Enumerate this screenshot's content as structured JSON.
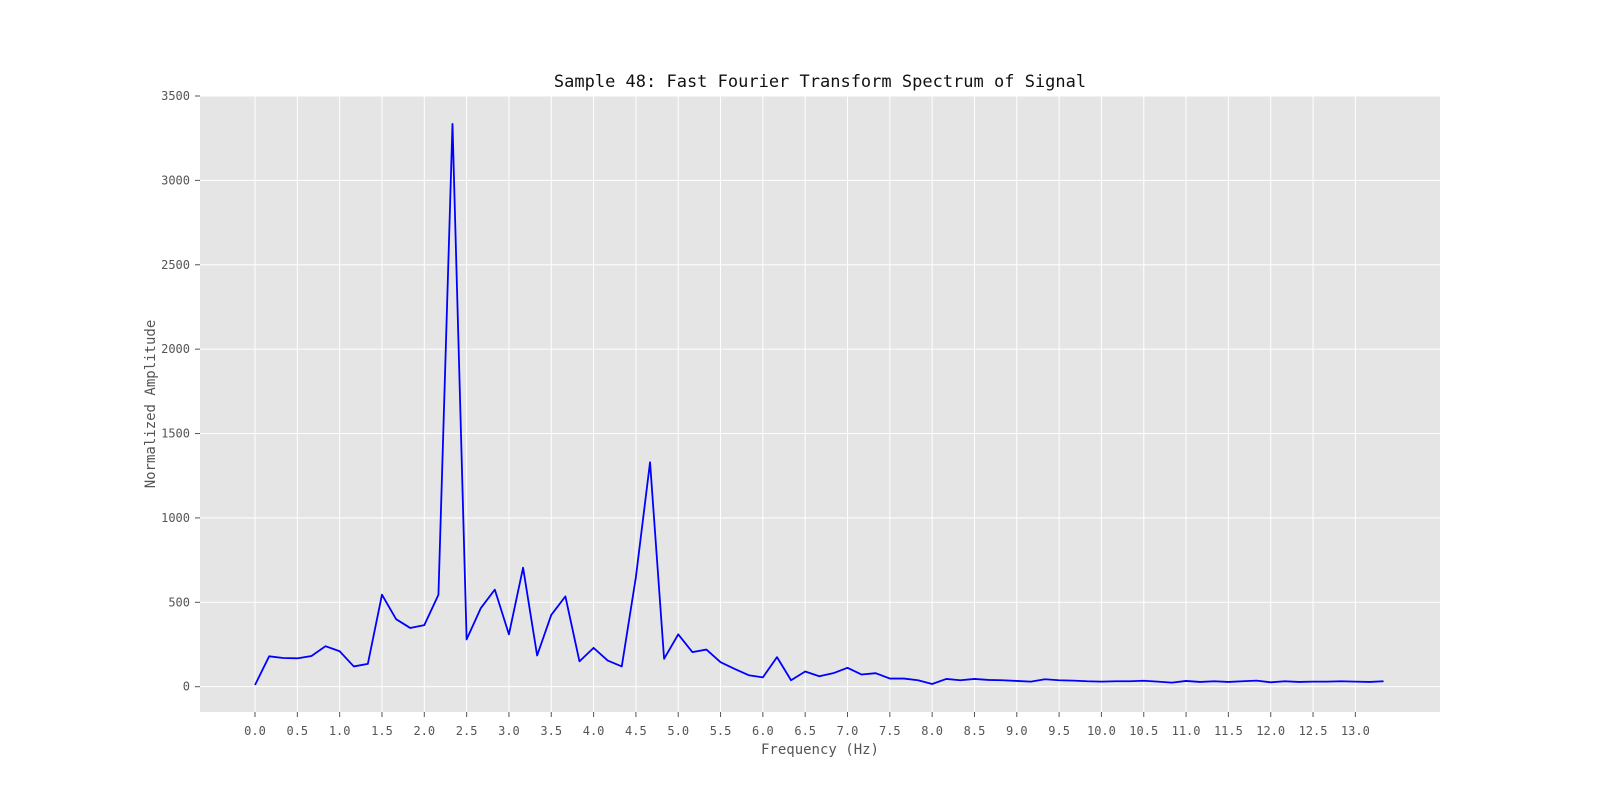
{
  "chart_data": {
    "type": "line",
    "title": "Sample 48: Fast Fourier Transform Spectrum of Signal",
    "xlabel": "Frequency (Hz)",
    "ylabel": "Normalized Amplitude",
    "xlim": [
      -0.65,
      14.0
    ],
    "ylim": [
      -150,
      3500
    ],
    "grid": true,
    "line_color": "#0000ff",
    "background_color": "#e5e5e5",
    "grid_color": "#ffffff",
    "xticks": [
      0.0,
      0.5,
      1.0,
      1.5,
      2.0,
      2.5,
      3.0,
      3.5,
      4.0,
      4.5,
      5.0,
      5.5,
      6.0,
      6.5,
      7.0,
      7.5,
      8.0,
      8.5,
      9.0,
      9.5,
      10.0,
      10.5,
      11.0,
      11.5,
      12.0,
      12.5,
      13.0
    ],
    "xtick_labels": [
      "0.0",
      "0.5",
      "1.0",
      "1.5",
      "2.0",
      "2.5",
      "3.0",
      "3.5",
      "4.0",
      "4.5",
      "5.0",
      "5.5",
      "6.0",
      "6.5",
      "7.0",
      "7.5",
      "8.0",
      "8.5",
      "9.0",
      "9.5",
      "10.0",
      "10.5",
      "11.0",
      "11.5",
      "12.0",
      "12.5",
      "13.0"
    ],
    "yticks": [
      0,
      500,
      1000,
      1500,
      2000,
      2500,
      3000,
      3500
    ],
    "ytick_labels": [
      "0",
      "500",
      "1000",
      "1500",
      "2000",
      "2500",
      "3000",
      "3500"
    ],
    "series": [
      {
        "x": [
          0.0,
          0.167,
          0.333,
          0.5,
          0.667,
          0.833,
          1.0,
          1.167,
          1.333,
          1.5,
          1.667,
          1.833,
          2.0,
          2.167,
          2.333,
          2.5,
          2.667,
          2.833,
          3.0,
          3.167,
          3.333,
          3.5,
          3.667,
          3.833,
          4.0,
          4.167,
          4.333,
          4.5,
          4.667,
          4.833,
          5.0,
          5.167,
          5.333,
          5.5,
          5.667,
          5.833,
          6.0,
          6.167,
          6.333,
          6.5,
          6.667,
          6.833,
          7.0,
          7.167,
          7.333,
          7.5,
          7.667,
          7.833,
          8.0,
          8.167,
          8.333,
          8.5,
          8.667,
          8.833,
          9.0,
          9.167,
          9.333,
          9.5,
          9.667,
          9.833,
          10.0,
          10.167,
          10.333,
          10.5,
          10.667,
          10.833,
          11.0,
          11.167,
          11.333,
          11.5,
          11.667,
          11.833,
          12.0,
          12.167,
          12.333,
          12.5,
          12.667,
          12.833,
          13.0,
          13.167,
          13.333
        ],
        "values": [
          10,
          180,
          170,
          168,
          182,
          240,
          210,
          120,
          135,
          545,
          400,
          348,
          365,
          545,
          3335,
          280,
          465,
          575,
          310,
          705,
          185,
          425,
          535,
          150,
          230,
          155,
          120,
          650,
          1330,
          165,
          310,
          205,
          220,
          145,
          105,
          68,
          55,
          175,
          38,
          90,
          62,
          80,
          112,
          72,
          80,
          48,
          48,
          38,
          16,
          46,
          38,
          46,
          40,
          38,
          34,
          30,
          44,
          38,
          36,
          32,
          30,
          32,
          32,
          35,
          30,
          24,
          34,
          28,
          32,
          28,
          32,
          36,
          26,
          32,
          28,
          30,
          30,
          32,
          30,
          28,
          32
        ]
      }
    ]
  }
}
